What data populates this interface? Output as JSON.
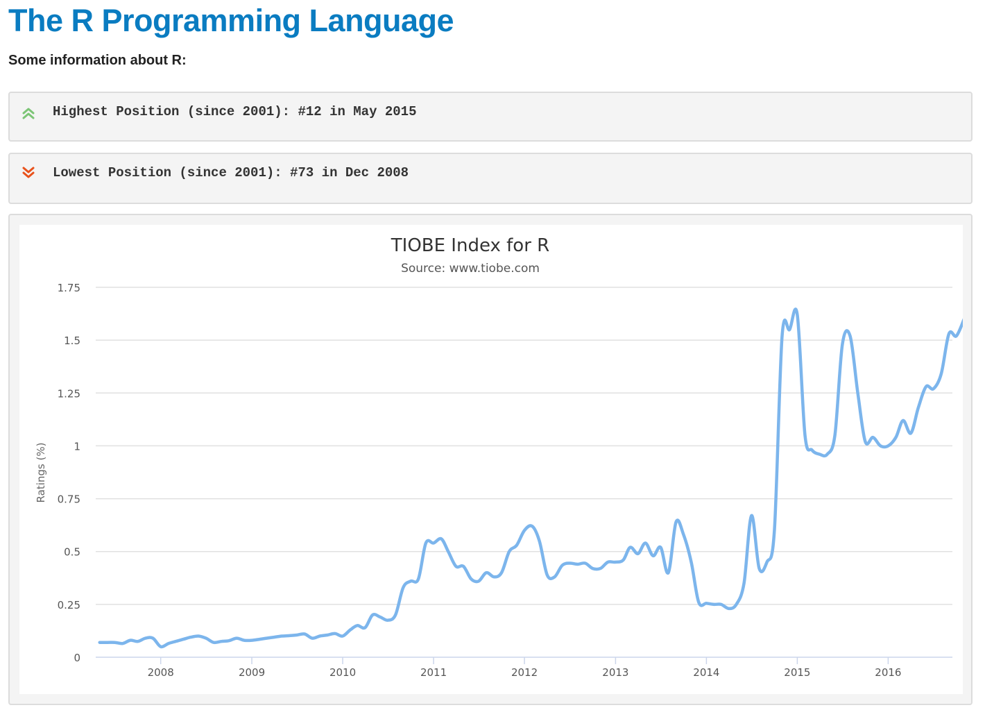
{
  "header": {
    "title": "The R Programming Language",
    "intro": "Some information about R:"
  },
  "positions": {
    "highest": "Highest Position (since 2001): #12 in May 2015",
    "lowest": "Lowest Position (since 2001): #73 in Dec 2008"
  },
  "colors": {
    "title": "#0a7cc1",
    "up_icon": "#7cc576",
    "down_icon": "#e8521c",
    "series": "#7cb5ec"
  },
  "icons": {
    "up": "double-chevron-up-icon",
    "down": "double-chevron-down-icon"
  },
  "chart_data": {
    "type": "line",
    "title": "TIOBE Index for R",
    "subtitle": "Source: www.tiobe.com",
    "xlabel": "",
    "ylabel": "Ratings (%)",
    "ylim": [
      0,
      1.75
    ],
    "yticks": [
      0,
      0.25,
      0.5,
      0.75,
      1,
      1.25,
      1.5,
      1.75
    ],
    "ytick_labels": [
      "0",
      "0.25",
      "0.5",
      "0.75",
      "1",
      "1.25",
      "1.5",
      "1.75"
    ],
    "xlim": [
      "2007-04-15",
      "2016-09-15"
    ],
    "xticks": [
      "2008-01-01",
      "2009-01-01",
      "2010-01-01",
      "2011-01-01",
      "2012-01-01",
      "2013-01-01",
      "2014-01-01",
      "2015-01-01",
      "2016-01-01"
    ],
    "xtick_labels": [
      "2008",
      "2009",
      "2010",
      "2011",
      "2012",
      "2013",
      "2014",
      "2015",
      "2016"
    ],
    "grid": true,
    "legend": "none",
    "series": [
      {
        "values": [
          [
            "2007-05-01",
            0.07
          ],
          [
            "2007-06-01",
            0.07
          ],
          [
            "2007-07-01",
            0.07
          ],
          [
            "2007-08-01",
            0.065
          ],
          [
            "2007-09-01",
            0.08
          ],
          [
            "2007-10-01",
            0.075
          ],
          [
            "2007-11-01",
            0.09
          ],
          [
            "2007-12-01",
            0.09
          ],
          [
            "2008-01-01",
            0.05
          ],
          [
            "2008-02-01",
            0.065
          ],
          [
            "2008-03-01",
            0.075
          ],
          [
            "2008-04-01",
            0.085
          ],
          [
            "2008-05-01",
            0.095
          ],
          [
            "2008-06-01",
            0.1
          ],
          [
            "2008-07-01",
            0.09
          ],
          [
            "2008-08-01",
            0.07
          ],
          [
            "2008-09-01",
            0.075
          ],
          [
            "2008-10-01",
            0.078
          ],
          [
            "2008-11-01",
            0.09
          ],
          [
            "2008-12-01",
            0.08
          ],
          [
            "2009-01-01",
            0.08
          ],
          [
            "2009-02-01",
            0.085
          ],
          [
            "2009-03-01",
            0.09
          ],
          [
            "2009-04-01",
            0.095
          ],
          [
            "2009-05-01",
            0.1
          ],
          [
            "2009-06-01",
            0.102
          ],
          [
            "2009-07-01",
            0.105
          ],
          [
            "2009-08-01",
            0.11
          ],
          [
            "2009-09-01",
            0.09
          ],
          [
            "2009-10-01",
            0.1
          ],
          [
            "2009-11-01",
            0.105
          ],
          [
            "2009-12-01",
            0.112
          ],
          [
            "2010-01-01",
            0.1
          ],
          [
            "2010-02-01",
            0.13
          ],
          [
            "2010-03-01",
            0.15
          ],
          [
            "2010-04-01",
            0.14
          ],
          [
            "2010-05-01",
            0.2
          ],
          [
            "2010-06-01",
            0.19
          ],
          [
            "2010-07-01",
            0.175
          ],
          [
            "2010-08-01",
            0.2
          ],
          [
            "2010-09-01",
            0.33
          ],
          [
            "2010-10-01",
            0.36
          ],
          [
            "2010-11-01",
            0.37
          ],
          [
            "2010-12-01",
            0.54
          ],
          [
            "2011-01-01",
            0.54
          ],
          [
            "2011-02-01",
            0.56
          ],
          [
            "2011-03-01",
            0.5
          ],
          [
            "2011-04-01",
            0.43
          ],
          [
            "2011-05-01",
            0.43
          ],
          [
            "2011-06-01",
            0.37
          ],
          [
            "2011-07-01",
            0.36
          ],
          [
            "2011-08-01",
            0.4
          ],
          [
            "2011-09-01",
            0.38
          ],
          [
            "2011-10-01",
            0.4
          ],
          [
            "2011-11-01",
            0.5
          ],
          [
            "2011-12-01",
            0.53
          ],
          [
            "2012-01-01",
            0.6
          ],
          [
            "2012-02-01",
            0.62
          ],
          [
            "2012-03-01",
            0.55
          ],
          [
            "2012-04-01",
            0.39
          ],
          [
            "2012-05-01",
            0.38
          ],
          [
            "2012-06-01",
            0.435
          ],
          [
            "2012-07-01",
            0.445
          ],
          [
            "2012-08-01",
            0.44
          ],
          [
            "2012-09-01",
            0.445
          ],
          [
            "2012-10-01",
            0.42
          ],
          [
            "2012-11-01",
            0.42
          ],
          [
            "2012-12-01",
            0.45
          ],
          [
            "2013-01-01",
            0.45
          ],
          [
            "2013-02-01",
            0.46
          ],
          [
            "2013-03-01",
            0.52
          ],
          [
            "2013-04-01",
            0.49
          ],
          [
            "2013-05-01",
            0.54
          ],
          [
            "2013-06-01",
            0.48
          ],
          [
            "2013-07-01",
            0.52
          ],
          [
            "2013-08-01",
            0.4
          ],
          [
            "2013-09-01",
            0.64
          ],
          [
            "2013-10-01",
            0.58
          ],
          [
            "2013-11-01",
            0.45
          ],
          [
            "2013-12-01",
            0.26
          ],
          [
            "2014-01-01",
            0.255
          ],
          [
            "2014-02-01",
            0.25
          ],
          [
            "2014-03-01",
            0.25
          ],
          [
            "2014-04-01",
            0.23
          ],
          [
            "2014-05-01",
            0.25
          ],
          [
            "2014-06-01",
            0.35
          ],
          [
            "2014-07-01",
            0.67
          ],
          [
            "2014-08-01",
            0.42
          ],
          [
            "2014-09-01",
            0.45
          ],
          [
            "2014-10-01",
            0.6
          ],
          [
            "2014-11-01",
            1.52
          ],
          [
            "2014-12-01",
            1.55
          ],
          [
            "2015-01-01",
            1.62
          ],
          [
            "2015-02-01",
            1.05
          ],
          [
            "2015-03-01",
            0.98
          ],
          [
            "2015-04-01",
            0.96
          ],
          [
            "2015-05-01",
            0.96
          ],
          [
            "2015-06-01",
            1.05
          ],
          [
            "2015-07-01",
            1.48
          ],
          [
            "2015-08-01",
            1.52
          ],
          [
            "2015-09-01",
            1.25
          ],
          [
            "2015-10-01",
            1.02
          ],
          [
            "2015-11-01",
            1.04
          ],
          [
            "2015-12-01",
            1.0
          ],
          [
            "2016-01-01",
            1.0
          ],
          [
            "2016-02-01",
            1.04
          ],
          [
            "2016-03-01",
            1.12
          ],
          [
            "2016-04-01",
            1.06
          ],
          [
            "2016-05-01",
            1.18
          ],
          [
            "2016-06-01",
            1.28
          ],
          [
            "2016-07-01",
            1.27
          ],
          [
            "2016-08-01",
            1.34
          ],
          [
            "2016-09-01",
            1.53
          ],
          [
            "2016-10-01",
            1.52
          ],
          [
            "2016-11-01",
            1.6
          ]
        ]
      }
    ]
  }
}
